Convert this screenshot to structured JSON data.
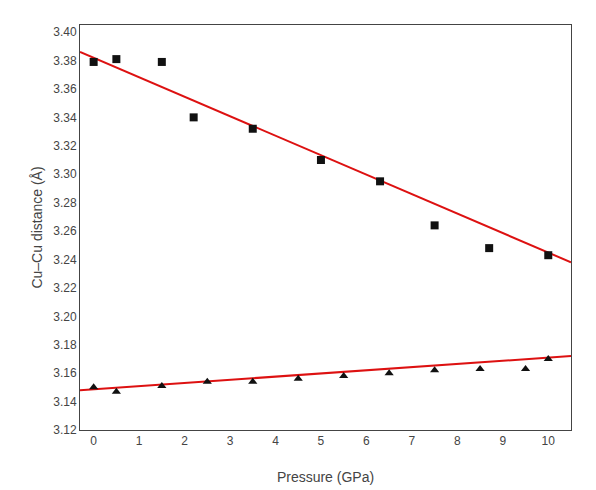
{
  "chart_data": {
    "type": "scatter",
    "xlabel": "Pressure (GPa)",
    "ylabel": "Cu–Cu distance (Å)",
    "xlim": [
      -0.3,
      10.5
    ],
    "ylim": [
      3.12,
      3.405
    ],
    "xticks": [
      0,
      1,
      2,
      3,
      4,
      5,
      6,
      7,
      8,
      9,
      10
    ],
    "yticks": [
      3.12,
      3.14,
      3.16,
      3.18,
      {
        "value": 3.2,
        "label": "3.20"
      },
      3.22,
      3.24,
      3.26,
      3.28,
      {
        "value": 3.3,
        "label": "3.30"
      },
      3.32,
      3.34,
      3.36,
      3.38,
      {
        "value": 3.4,
        "label": "3.40"
      }
    ],
    "grid": false,
    "series": [
      {
        "type": "line",
        "color": "#dd1111",
        "x": [
          -0.3,
          10.5
        ],
        "values": [
          3.386,
          3.238
        ]
      },
      {
        "type": "line",
        "color": "#dd1111",
        "x": [
          -0.3,
          10.5
        ],
        "values": [
          3.148,
          3.172
        ]
      },
      {
        "type": "scatter",
        "marker": "square",
        "color": "#111111",
        "x": [
          0.0,
          0.5,
          1.5,
          2.2,
          3.5,
          5.0,
          6.3,
          7.5,
          8.7,
          10.0
        ],
        "values": [
          3.379,
          3.381,
          3.379,
          3.34,
          3.332,
          3.31,
          3.295,
          3.264,
          3.248,
          3.243
        ]
      },
      {
        "type": "scatter",
        "marker": "triangle",
        "color": "#111111",
        "x": [
          0.0,
          0.5,
          1.5,
          2.5,
          3.5,
          4.5,
          5.5,
          6.5,
          7.5,
          8.5,
          9.5,
          10.0
        ],
        "values": [
          3.15,
          3.147,
          3.151,
          3.154,
          3.154,
          3.156,
          3.158,
          3.16,
          3.162,
          3.163,
          3.163,
          3.17
        ]
      }
    ]
  }
}
